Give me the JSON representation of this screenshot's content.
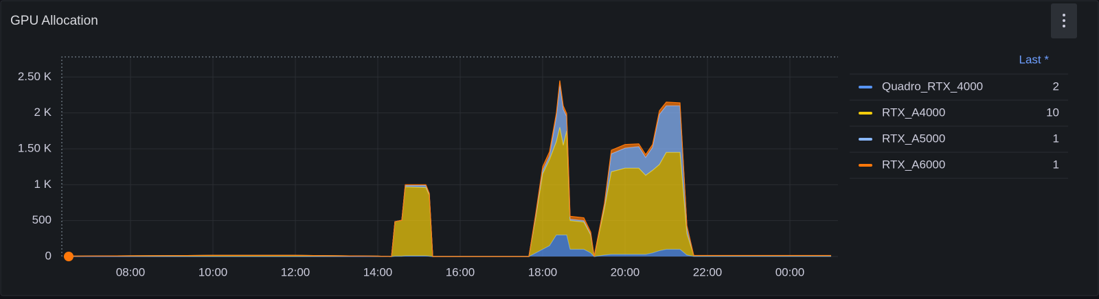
{
  "chart_data": {
    "type": "stacked-area",
    "title": "GPU Allocation",
    "x": [
      "06:30",
      "08:00",
      "10:00",
      "12:00",
      "14:00",
      "14:20",
      "14:25",
      "14:35",
      "14:40",
      "15:10",
      "15:15",
      "15:20",
      "17:40",
      "17:50",
      "18:00",
      "18:10",
      "18:20",
      "18:25",
      "18:30",
      "18:35",
      "18:40",
      "19:00",
      "19:10",
      "19:15",
      "19:30",
      "19:40",
      "20:00",
      "20:20",
      "20:30",
      "20:40",
      "20:50",
      "21:00",
      "21:20",
      "21:30",
      "21:40",
      "23:00",
      "01:00"
    ],
    "series": [
      {
        "name": "Quadro_RTX_4000",
        "color": "#5794f2",
        "values": [
          0,
          0,
          0,
          0,
          0,
          0,
          5,
          5,
          10,
          10,
          5,
          0,
          0,
          50,
          100,
          150,
          300,
          300,
          300,
          300,
          100,
          100,
          50,
          0,
          20,
          30,
          30,
          30,
          30,
          50,
          80,
          100,
          100,
          20,
          2,
          2,
          2
        ]
      },
      {
        "name": "RTX_A4000",
        "color": "#f2cc0c",
        "values": [
          5,
          10,
          15,
          15,
          5,
          0,
          480,
          500,
          960,
          950,
          850,
          0,
          0,
          500,
          1050,
          1200,
          1300,
          1500,
          1250,
          1450,
          400,
          380,
          250,
          0,
          650,
          1150,
          1200,
          1200,
          1100,
          1150,
          1200,
          1350,
          1350,
          300,
          10,
          10,
          10
        ]
      },
      {
        "name": "RTX_A5000",
        "color": "#8ab8ff",
        "values": [
          0,
          0,
          0,
          0,
          0,
          0,
          0,
          0,
          20,
          30,
          20,
          0,
          0,
          20,
          50,
          50,
          350,
          600,
          500,
          200,
          20,
          20,
          10,
          0,
          50,
          250,
          280,
          300,
          250,
          320,
          700,
          650,
          650,
          100,
          1,
          1,
          1
        ]
      },
      {
        "name": "RTX_A6000",
        "color": "#ff780a",
        "values": [
          0,
          0,
          0,
          0,
          0,
          0,
          0,
          0,
          10,
          10,
          5,
          0,
          0,
          30,
          50,
          60,
          50,
          50,
          50,
          40,
          40,
          40,
          30,
          0,
          20,
          50,
          50,
          40,
          40,
          40,
          50,
          50,
          40,
          10,
          1,
          1,
          1
        ]
      }
    ],
    "xlim": [
      "06:20",
      "01:10"
    ],
    "xticks": [
      "08:00",
      "10:00",
      "12:00",
      "14:00",
      "16:00",
      "18:00",
      "20:00",
      "22:00",
      "00:00"
    ],
    "ylim": [
      0,
      2780
    ],
    "yticks": [
      0,
      500,
      {
        "value": 1000,
        "label": "1 K"
      },
      {
        "value": 1500,
        "label": "1.50 K"
      },
      {
        "value": 2000,
        "label": "2 K"
      },
      {
        "value": 2500,
        "label": "2.50 K"
      }
    ],
    "grid": true,
    "stacked": true,
    "legend_header": "Last *",
    "legend": "right"
  }
}
